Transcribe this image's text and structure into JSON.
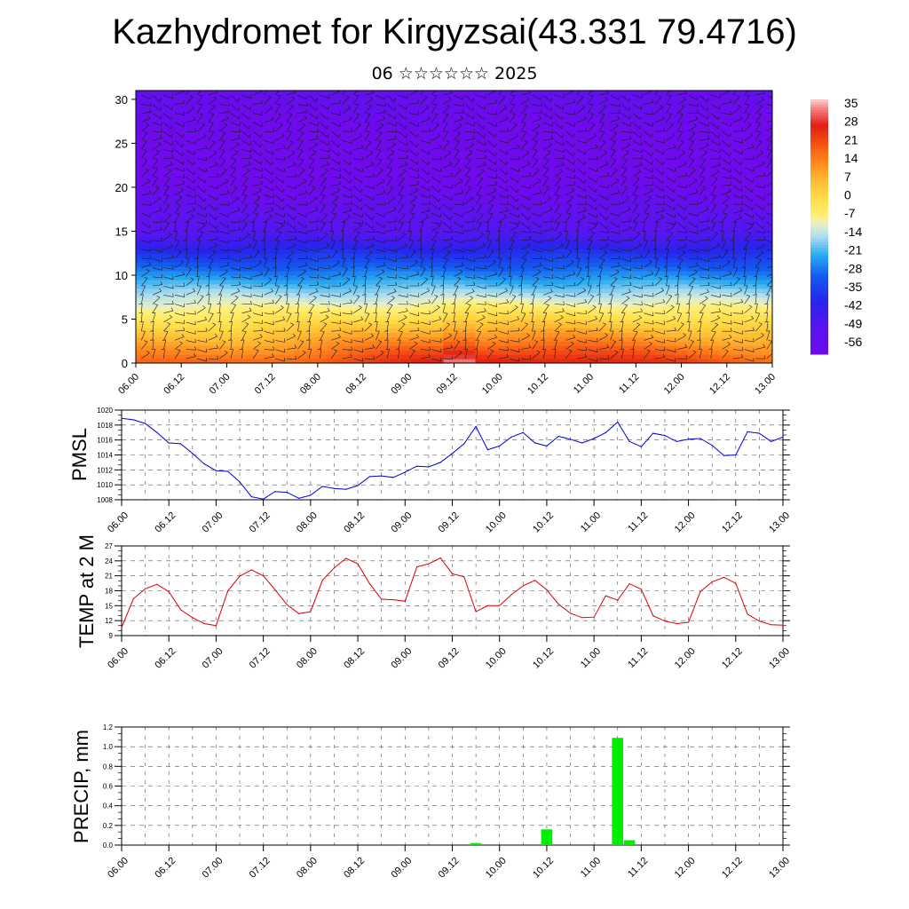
{
  "title": "Kazhydromet for Kirgyzsai(43.331 79.4716)",
  "subtitle": "06 ☆☆☆☆☆☆ 2025",
  "time_ticks": [
    "06.00",
    "06.12",
    "07.00",
    "07.12",
    "08.00",
    "08.12",
    "09.00",
    "09.12",
    "10.00",
    "10.12",
    "11.00",
    "11.12",
    "12.00",
    "12.12",
    "13.00"
  ],
  "colors": {
    "pmsl_line": "#0000dd",
    "temp_line": "#dd0000",
    "precip_bar": "#00ee00",
    "grid": "#555555"
  },
  "chart_data": [
    {
      "type": "heatmap",
      "name": "vertical_cross_section",
      "ylim": [
        0,
        31
      ],
      "yticks": [
        0,
        5,
        10,
        15,
        20,
        25,
        30
      ],
      "colorbar_labels": [
        "35",
        "28",
        "21",
        "14",
        "7",
        "0",
        "-7",
        "-14",
        "-21",
        "-28",
        "-35",
        "-42",
        "-49",
        "-56"
      ],
      "colorbar_range": [
        -60,
        38
      ],
      "overlay": "wind barbs"
    },
    {
      "type": "line",
      "ylabel": "PMSL",
      "ylim": [
        1008,
        1020
      ],
      "yticks": [
        1008,
        1010,
        1012,
        1014,
        1016,
        1018,
        1020
      ],
      "x_hours": [
        0,
        3,
        6,
        9,
        12,
        15,
        18,
        21,
        24,
        27,
        30,
        33,
        36,
        39,
        42,
        45,
        48,
        51,
        54,
        57,
        60,
        63,
        66,
        69,
        72,
        75,
        78,
        81,
        84,
        87,
        90,
        93,
        96,
        99,
        102,
        105,
        108,
        111,
        114,
        117,
        120,
        123,
        126,
        129,
        132,
        135,
        138,
        141,
        144,
        147,
        150,
        153,
        156,
        159,
        162,
        165,
        168
      ],
      "values": [
        1018.9,
        1018.7,
        1018.2,
        1017.0,
        1015.6,
        1015.5,
        1014.2,
        1012.8,
        1011.9,
        1011.8,
        1010.4,
        1008.4,
        1008.1,
        1009.1,
        1009.0,
        1008.2,
        1008.6,
        1009.8,
        1009.5,
        1009.4,
        1009.9,
        1011.1,
        1011.2,
        1011.0,
        1011.7,
        1012.5,
        1012.4,
        1013.0,
        1014.2,
        1015.5,
        1017.8,
        1014.7,
        1015.2,
        1016.4,
        1017.0,
        1015.6,
        1015.2,
        1016.5,
        1016.1,
        1015.6,
        1016.2,
        1017.0,
        1018.4,
        1015.8,
        1015.1,
        1016.9,
        1016.6,
        1015.8,
        1016.1,
        1016.2,
        1015.3,
        1013.9,
        1014.0,
        1017.1,
        1016.9,
        1015.8,
        1016.4
      ]
    },
    {
      "type": "line",
      "ylabel": "TEMP at 2 M",
      "ylim": [
        9,
        27
      ],
      "yticks": [
        9,
        12,
        15,
        18,
        21,
        24,
        27
      ],
      "x_hours": [
        0,
        3,
        6,
        9,
        12,
        15,
        18,
        21,
        24,
        27,
        30,
        33,
        36,
        39,
        42,
        45,
        48,
        51,
        54,
        57,
        60,
        63,
        66,
        69,
        72,
        75,
        78,
        81,
        84,
        87,
        90,
        93,
        96,
        99,
        102,
        105,
        108,
        111,
        114,
        117,
        120,
        123,
        126,
        129,
        132,
        135,
        138,
        141,
        144,
        147,
        150,
        153,
        156,
        159,
        162,
        165,
        168
      ],
      "values": [
        10.6,
        16.4,
        18.4,
        19.3,
        17.8,
        14.2,
        12.6,
        11.4,
        11.0,
        18.0,
        20.9,
        22.2,
        21.0,
        18.2,
        15.2,
        13.4,
        13.8,
        20.1,
        22.6,
        24.5,
        23.4,
        19.4,
        16.3,
        16.2,
        15.9,
        22.8,
        23.4,
        24.6,
        21.4,
        20.8,
        13.8,
        15.0,
        15.0,
        17.2,
        19.0,
        20.1,
        18.2,
        15.3,
        13.5,
        12.6,
        12.7,
        17.0,
        16.1,
        19.4,
        18.3,
        13.0,
        11.9,
        11.4,
        11.7,
        17.8,
        19.8,
        20.7,
        19.5,
        13.3,
        11.9,
        11.2,
        11.1
      ]
    },
    {
      "type": "bar",
      "ylabel": "PRECIP, mm",
      "ylim": [
        0,
        1.2
      ],
      "yticks": [
        0.0,
        0.2,
        0.4,
        0.6,
        0.8,
        1.0,
        1.2
      ],
      "x_hours": [
        90,
        108,
        126,
        129
      ],
      "values": [
        0.02,
        0.16,
        1.09,
        0.05
      ]
    }
  ]
}
